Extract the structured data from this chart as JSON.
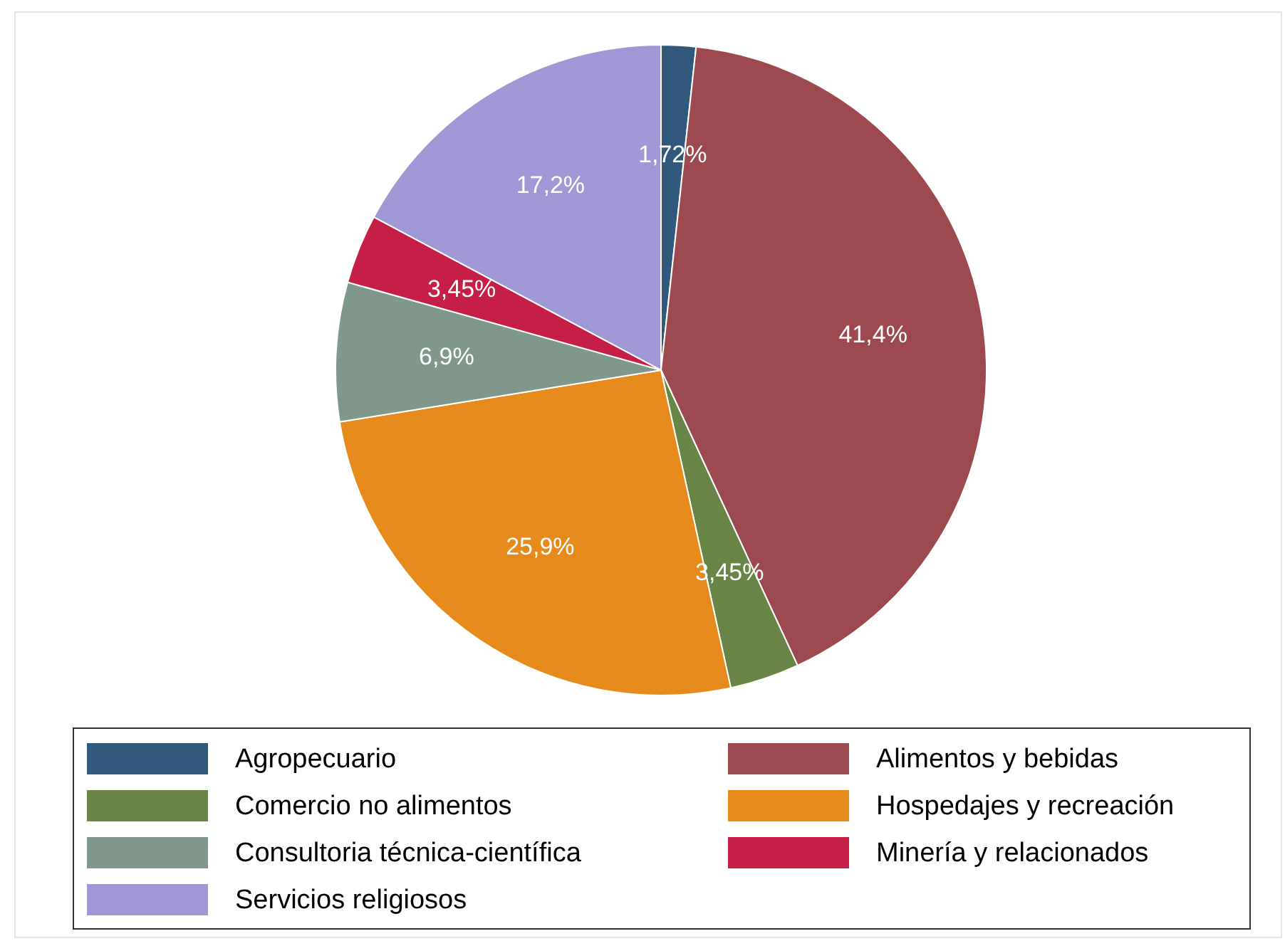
{
  "chart_data": {
    "type": "pie",
    "categories": [
      "Agropecuario",
      "Alimentos y bebidas",
      "Comercio no alimentos",
      "Hospedajes y recreación",
      "Consultoria técnica-científica",
      "Minería y relacionados",
      "Servicios religiosos"
    ],
    "values": [
      1.72,
      41.4,
      3.45,
      25.9,
      6.9,
      3.45,
      17.2
    ],
    "colors": [
      "#30597c",
      "#9c4a50",
      "#688545",
      "#e68a1c",
      "#80988c",
      "#c61f47",
      "#9f98d5"
    ],
    "value_labels": [
      "1,72%",
      "41,4%",
      "3,45%",
      "25,9%",
      "6,9%",
      "3,45%",
      "17,2%"
    ],
    "legend": "bottom"
  }
}
